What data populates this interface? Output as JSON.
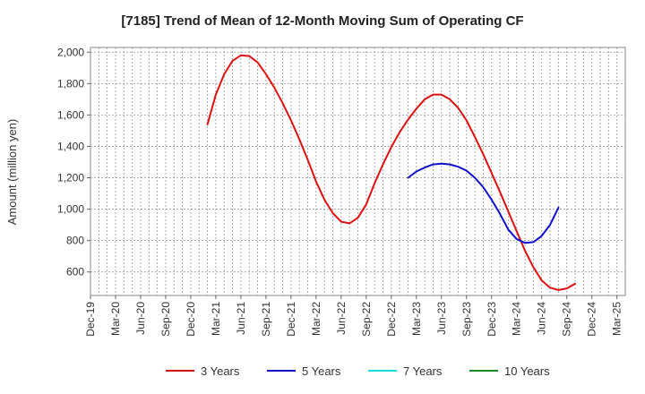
{
  "chart_data": {
    "type": "line",
    "title": "[7185]  Trend of Mean of 12-Month Moving Sum of Operating CF",
    "xlabel": "",
    "ylabel": "Amount (million yen)",
    "ylim": [
      450,
      2030
    ],
    "yticks": [
      600,
      800,
      1000,
      1200,
      1400,
      1600,
      1800,
      2000
    ],
    "ytick_labels": [
      "600",
      "800",
      "1,000",
      "1,200",
      "1,400",
      "1,600",
      "1,800",
      "2,000"
    ],
    "x_tick_labels": [
      "Dec-19",
      "Mar-20",
      "Jun-20",
      "Sep-20",
      "Dec-20",
      "Mar-21",
      "Jun-21",
      "Sep-21",
      "Dec-21",
      "Mar-22",
      "Jun-22",
      "Sep-22",
      "Dec-22",
      "Mar-23",
      "Jun-23",
      "Sep-23",
      "Dec-23",
      "Mar-24",
      "Jun-24",
      "Sep-24",
      "Dec-24",
      "Mar-25"
    ],
    "x_month_count": 64,
    "grid": true,
    "legend_position": "bottom",
    "series": [
      {
        "name": "3 Years",
        "color": "#dd1111",
        "start_month": 14,
        "values": [
          1540,
          1730,
          1860,
          1945,
          1980,
          1975,
          1935,
          1860,
          1775,
          1675,
          1565,
          1445,
          1315,
          1175,
          1060,
          975,
          920,
          910,
          945,
          1030,
          1165,
          1285,
          1395,
          1490,
          1570,
          1640,
          1700,
          1730,
          1730,
          1700,
          1645,
          1565,
          1460,
          1350,
          1230,
          1110,
          985,
          860,
          735,
          630,
          545,
          500,
          485,
          495,
          525
        ]
      },
      {
        "name": "5 Years",
        "color": "#1111cc",
        "start_month": 38,
        "values": [
          1200,
          1240,
          1265,
          1285,
          1290,
          1285,
          1270,
          1245,
          1200,
          1140,
          1060,
          970,
          870,
          810,
          785,
          790,
          830,
          900,
          1010
        ]
      },
      {
        "name": "7 Years",
        "color": "#11dddd",
        "start_month": 0,
        "values": []
      },
      {
        "name": "10 Years",
        "color": "#228822",
        "start_month": 0,
        "values": []
      }
    ]
  }
}
